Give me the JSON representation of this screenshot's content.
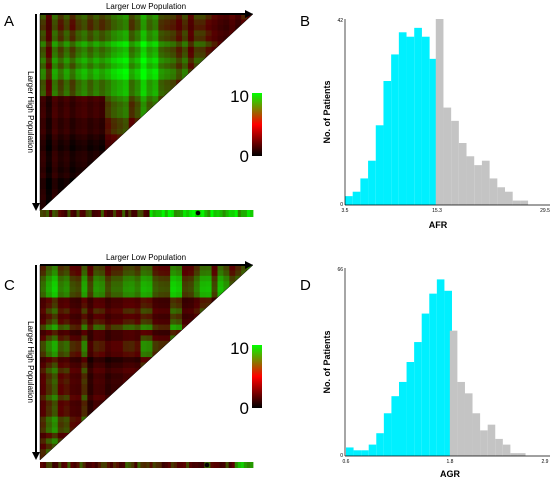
{
  "panels": {
    "A": {
      "letter": "A",
      "top_label": "Larger Low Population",
      "side_label": "Larger High Population",
      "colorbar": {
        "max_label": "10",
        "min_label": "0"
      }
    },
    "B": {
      "letter": "B"
    },
    "C": {
      "letter": "C",
      "top_label": "Larger Low Population",
      "side_label": "Larger High Population",
      "colorbar": {
        "max_label": "10",
        "min_label": "0"
      }
    },
    "D": {
      "letter": "D"
    }
  },
  "colors": {
    "low_group": "#00f0ff",
    "high_group": "#c4c4c4",
    "heat_low": "#000000",
    "heat_mid": "#ff0000",
    "heat_high": "#00ff00"
  },
  "chart_data": [
    {
      "type": "heatmap",
      "panel": "A",
      "title": "",
      "xlabel": "Larger Low Population",
      "ylabel": "Larger High Population",
      "colorbar_range": [
        0,
        10
      ],
      "shape": "lower-left triangle",
      "cutpoint_marker": true
    },
    {
      "type": "bar",
      "panel": "B",
      "xlabel": "AFR",
      "ylabel": "No. of Patients",
      "xticks": [
        "3.5",
        "15.3",
        "29.5"
      ],
      "yticks": [
        "0",
        "42"
      ],
      "ylim": [
        0,
        42
      ],
      "xlim": [
        3.5,
        29.5
      ],
      "cutpoint": 15.3,
      "bin_width": 1,
      "bin_starts": [
        3.5,
        4.5,
        5.5,
        6.5,
        7.5,
        8.5,
        9.5,
        10.5,
        11.5,
        12.5,
        13.5,
        14.5,
        15.3,
        16.3,
        17.3,
        18.3,
        19.3,
        20.3,
        21.3,
        22.3,
        23.3,
        24.3,
        25.3,
        26.3
      ],
      "values": [
        2,
        3,
        6,
        10,
        18,
        28,
        34,
        39,
        38,
        40,
        38,
        33,
        42,
        22,
        19,
        14,
        11,
        9,
        10,
        6,
        4,
        3,
        1,
        1
      ],
      "series": [
        {
          "name": "",
          "color": "#00f0ff",
          "range": [
            3.5,
            15.3
          ]
        },
        {
          "name": "",
          "color": "#c4c4c4",
          "range": [
            15.3,
            29.5
          ]
        }
      ]
    },
    {
      "type": "heatmap",
      "panel": "C",
      "title": "",
      "xlabel": "Larger Low Population",
      "ylabel": "Larger High Population",
      "colorbar_range": [
        0,
        10
      ],
      "shape": "lower-left triangle",
      "cutpoint_marker": true
    },
    {
      "type": "bar",
      "panel": "D",
      "xlabel": "AGR",
      "ylabel": "No. of Patients",
      "xticks": [
        "0.6",
        "1.8",
        "2.9"
      ],
      "yticks": [
        "0",
        "66"
      ],
      "ylim": [
        0,
        66
      ],
      "xlim": [
        0.6,
        2.9
      ],
      "cutpoint": 1.8,
      "bin_width": 0.0875,
      "bin_starts": [
        0.6,
        0.6875,
        0.775,
        0.8625,
        0.95,
        1.0375,
        1.125,
        1.2125,
        1.3,
        1.3875,
        1.475,
        1.5625,
        1.65,
        1.7375,
        1.8,
        1.8875,
        1.975,
        2.0625,
        2.15,
        2.2375,
        2.325,
        2.4125,
        2.5,
        2.5875
      ],
      "values": [
        3,
        2,
        2,
        4,
        8,
        15,
        21,
        26,
        33,
        40,
        50,
        57,
        62,
        58,
        44,
        26,
        22,
        15,
        9,
        11,
        6,
        4,
        1,
        1
      ],
      "series": [
        {
          "name": "",
          "color": "#00f0ff",
          "range": [
            0.6,
            1.8
          ]
        },
        {
          "name": "",
          "color": "#c4c4c4",
          "range": [
            1.8,
            2.9
          ]
        }
      ]
    }
  ]
}
